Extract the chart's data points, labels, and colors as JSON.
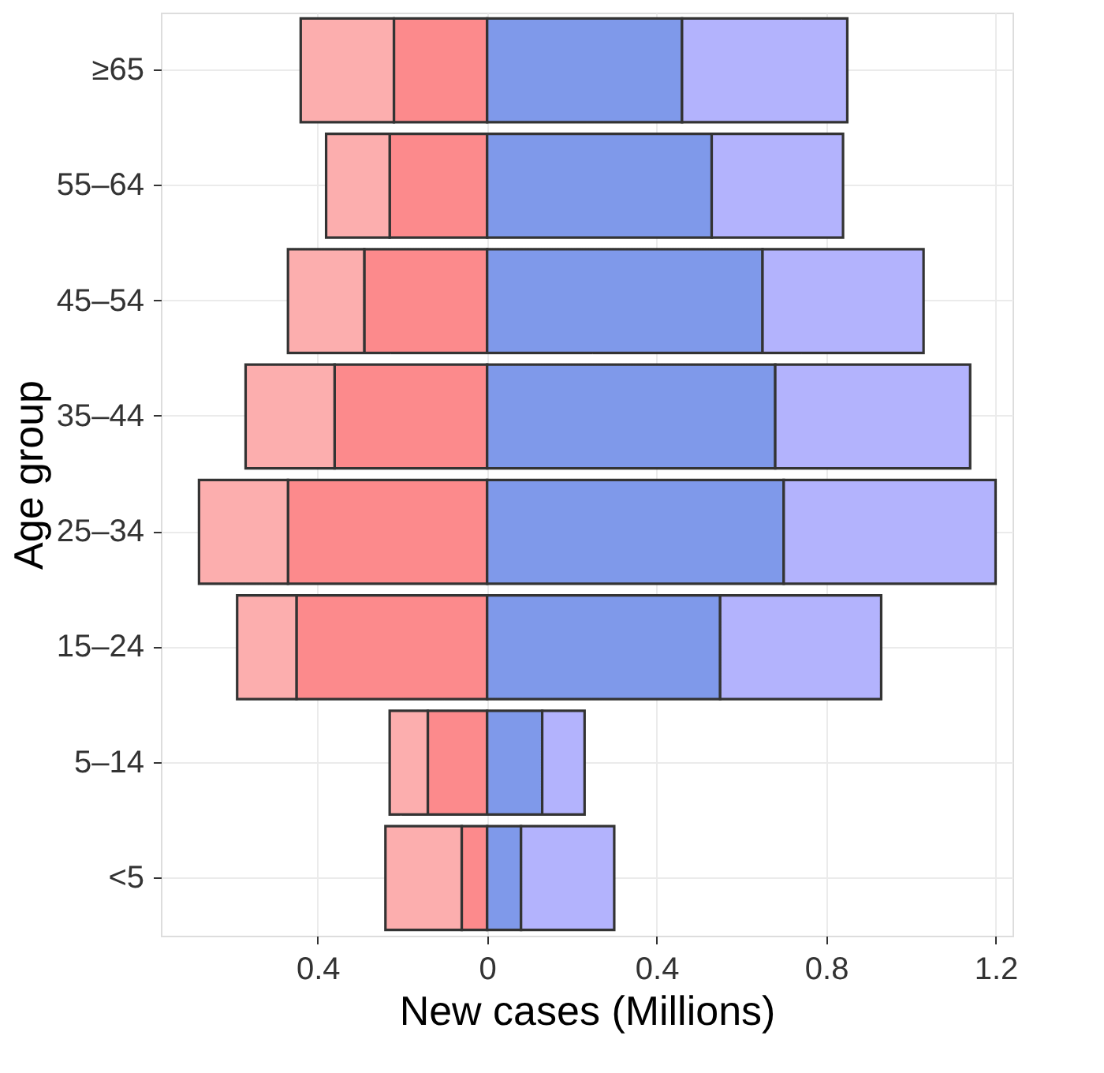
{
  "chart_data": {
    "type": "bar",
    "orientation": "horizontal",
    "stacked": true,
    "xlabel": "New cases (Millions)",
    "ylabel": "Age group",
    "categories": [
      "≥65",
      "55–64",
      "45–54",
      "35–44",
      "25–34",
      "15–24",
      "5–14",
      "<5"
    ],
    "series": [
      {
        "color": "#fc8a8c",
        "values": [
          -0.22,
          -0.23,
          -0.29,
          -0.36,
          -0.47,
          -0.45,
          -0.14,
          -0.06
        ]
      },
      {
        "color": "#fcaeae",
        "values": [
          -0.22,
          -0.15,
          -0.18,
          -0.21,
          -0.21,
          -0.14,
          -0.09,
          -0.18
        ]
      },
      {
        "color": "#7f99ea",
        "values": [
          0.46,
          0.53,
          0.65,
          0.68,
          0.7,
          0.55,
          0.13,
          0.08
        ]
      },
      {
        "color": "#b3b3fd",
        "values": [
          0.39,
          0.31,
          0.38,
          0.46,
          0.5,
          0.38,
          0.1,
          0.22
        ]
      }
    ],
    "xlim": [
      -0.77,
      1.24
    ],
    "xticks": [
      {
        "value": -0.4,
        "label": "0.4"
      },
      0,
      0.4,
      0.8,
      1.2
    ],
    "grid": true
  }
}
